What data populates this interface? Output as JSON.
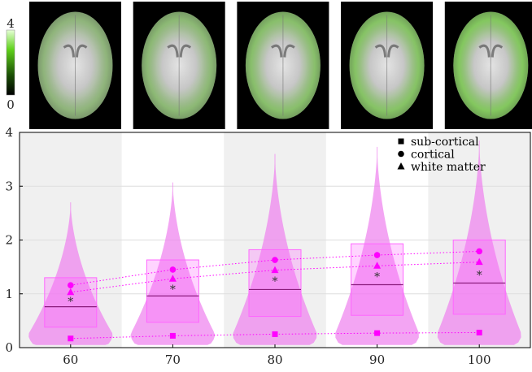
{
  "colorbar": {
    "max_label": "4",
    "min_label": "0",
    "range": [
      0,
      4
    ],
    "gradient": [
      "#000000",
      "#1a4d05",
      "#5fd11a",
      "#e6ffd6"
    ]
  },
  "brain_panels": [
    {
      "age": 60,
      "intensity": 0.55
    },
    {
      "age": 70,
      "intensity": 0.65
    },
    {
      "age": 80,
      "intensity": 0.8
    },
    {
      "age": 90,
      "intensity": 0.9
    },
    {
      "age": 100,
      "intensity": 1.0
    }
  ],
  "chart_data": {
    "type": "violin",
    "categories": [
      "60",
      "70",
      "80",
      "90",
      "100"
    ],
    "y_ticks": [
      "0",
      "1",
      "2",
      "3",
      "4"
    ],
    "ylim": [
      0,
      4
    ],
    "grid": true,
    "colors": {
      "violin": "#ee82ee",
      "box": "#ff66ff",
      "marker": "#ff00ff",
      "mean": "#333333",
      "band": "#f0f0f0"
    },
    "violins": [
      {
        "max": 2.7,
        "q1": 0.38,
        "median": 0.76,
        "q3": 1.3
      },
      {
        "max": 3.07,
        "q1": 0.47,
        "median": 0.96,
        "q3": 1.63
      },
      {
        "max": 3.6,
        "q1": 0.58,
        "median": 1.08,
        "q3": 1.82
      },
      {
        "max": 3.73,
        "q1": 0.6,
        "median": 1.17,
        "q3": 1.93
      },
      {
        "max": 3.85,
        "q1": 0.62,
        "median": 1.2,
        "q3": 2.0
      }
    ],
    "means": [
      0.89,
      1.12,
      1.27,
      1.35,
      1.38
    ],
    "series": [
      {
        "name": "sub-cortical",
        "marker": "square",
        "values": [
          0.17,
          0.22,
          0.25,
          0.27,
          0.28
        ]
      },
      {
        "name": "cortical",
        "marker": "circle",
        "values": [
          1.16,
          1.45,
          1.63,
          1.72,
          1.79
        ]
      },
      {
        "name": "white matter",
        "marker": "triangle",
        "values": [
          1.03,
          1.28,
          1.44,
          1.52,
          1.59
        ]
      }
    ],
    "legend_position": "top-right"
  }
}
